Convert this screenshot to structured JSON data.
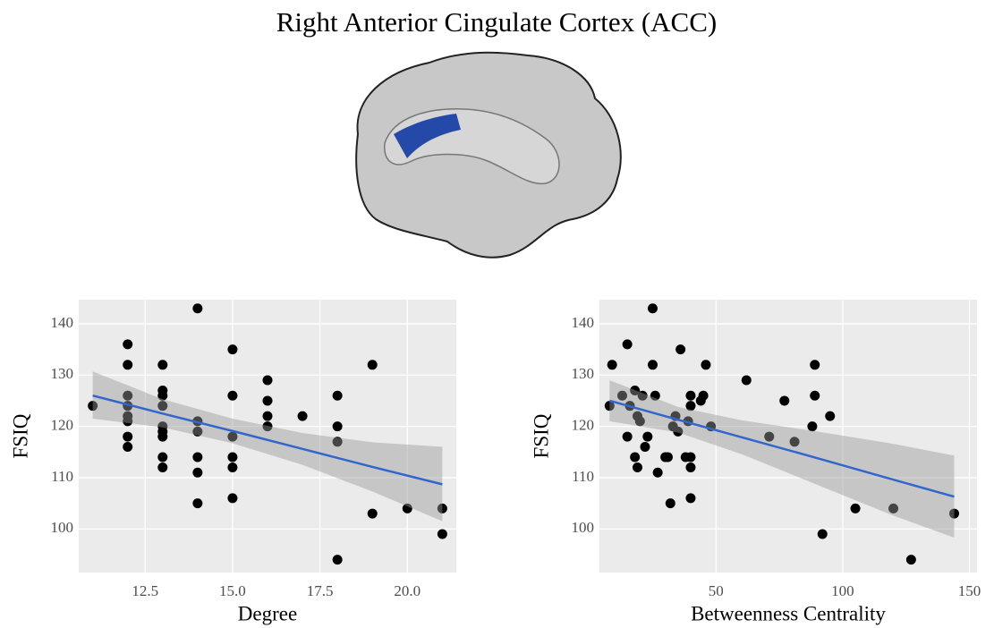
{
  "title": "Right Anterior Cingulate Cortex (ACC)",
  "chart_data": [
    {
      "type": "scatter",
      "x_label": "Degree",
      "y_label": "FSIQ",
      "color": "#000000",
      "x": [
        11,
        12,
        12,
        12,
        12,
        12,
        12,
        12,
        12,
        13,
        13,
        13,
        13,
        13,
        13,
        13,
        13,
        13,
        14,
        14,
        14,
        14,
        14,
        14,
        15,
        15,
        15,
        15,
        15,
        15,
        16,
        16,
        16,
        16,
        17,
        18,
        18,
        18,
        18,
        19,
        19,
        20,
        21,
        21
      ],
      "values": [
        124,
        136,
        132,
        126,
        124,
        122,
        121,
        118,
        116,
        132,
        127,
        126,
        124,
        120,
        119,
        118,
        114,
        112,
        143,
        121,
        119,
        114,
        111,
        105,
        135,
        126,
        118,
        114,
        112,
        106,
        129,
        125,
        122,
        120,
        122,
        126,
        120,
        117,
        94,
        132,
        103,
        104,
        104,
        99
      ],
      "fit": {
        "color": "#3366cc",
        "band_color": "#999999",
        "x": [
          11,
          13,
          15,
          17,
          19,
          21
        ],
        "values": [
          126,
          122.5,
          119.1,
          115.6,
          112.1,
          108.7
        ],
        "lower": [
          121.5,
          119.8,
          116.7,
          112.5,
          107.3,
          101.5
        ],
        "upper": [
          130.7,
          125.3,
          121.5,
          118.7,
          116.9,
          116.0
        ]
      },
      "xlim": [
        10.6,
        21.4
      ],
      "ylim": [
        91.5,
        144.7
      ],
      "xticks": [
        12.5,
        {
          "value": 15,
          "label": "15.0"
        },
        17.5,
        {
          "value": 20,
          "label": "20.0"
        }
      ],
      "yticks": [
        100,
        110,
        120,
        130,
        140
      ],
      "grid": true
    },
    {
      "type": "scatter",
      "x_label": "Betweenness Centrality",
      "y_label": "FSIQ",
      "color": "#000000",
      "x": [
        8,
        9,
        13,
        15,
        15,
        16,
        18,
        18,
        19,
        19,
        20,
        21,
        22,
        23,
        25,
        25,
        26,
        27,
        30,
        31,
        32,
        33,
        34,
        35,
        36,
        38,
        39,
        40,
        40,
        40,
        40,
        40,
        44,
        45,
        46,
        48,
        62,
        71,
        77,
        81,
        88,
        89,
        89,
        92,
        95,
        105,
        120,
        127,
        144
      ],
      "values": [
        124,
        132,
        126,
        118,
        136,
        124,
        114,
        127,
        122,
        112,
        121,
        126,
        116,
        118,
        143,
        132,
        126,
        111,
        114,
        114,
        105,
        120,
        122,
        119,
        135,
        114,
        121,
        124,
        126,
        114,
        112,
        106,
        125,
        126,
        132,
        120,
        129,
        118,
        125,
        117,
        120,
        126,
        132,
        99,
        122,
        104,
        104,
        94,
        103
      ],
      "fit": {
        "color": "#3366cc",
        "band_color": "#999999",
        "x": [
          8,
          35,
          60,
          90,
          120,
          144
        ],
        "values": [
          125,
          121.3,
          117.9,
          113.8,
          109.6,
          106.3
        ],
        "lower": [
          121,
          118.8,
          114.6,
          108.6,
          102.6,
          98.3
        ],
        "upper": [
          129,
          123.8,
          121.2,
          119,
          116.6,
          114.3
        ]
      },
      "xlim": [
        4,
        153
      ],
      "ylim": [
        91.5,
        144.7
      ],
      "xticks": [
        50,
        100,
        150
      ],
      "yticks": [
        100,
        110,
        120,
        130,
        140
      ],
      "grid": true
    }
  ]
}
